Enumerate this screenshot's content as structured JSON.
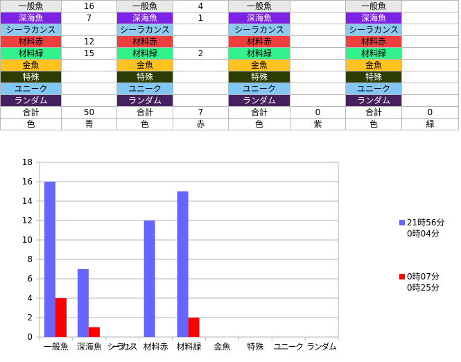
{
  "table": {
    "rows": [
      [
        "一般魚",
        "16",
        "一般魚",
        "4",
        "一般魚",
        "",
        "一般魚",
        ""
      ],
      [
        "深海魚",
        "7",
        "深海魚",
        "1",
        "深海魚",
        "",
        "深海魚",
        ""
      ],
      [
        "シーラカンス",
        "",
        "シーラカンス",
        "",
        "シーラカンス",
        "",
        "シーラカンス",
        ""
      ],
      [
        "材料赤",
        "12",
        "材料赤",
        "",
        "材料赤",
        "",
        "材料赤",
        ""
      ],
      [
        "材料緑",
        "15",
        "材料緑",
        "2",
        "材料緑",
        "",
        "材料緑",
        ""
      ],
      [
        "金魚",
        "",
        "金魚",
        "",
        "金魚",
        "",
        "金魚",
        ""
      ],
      [
        "特殊",
        "",
        "特殊",
        "",
        "特殊",
        "",
        "特殊",
        ""
      ],
      [
        "ユニーク",
        "",
        "ユニーク",
        "",
        "ユニーク",
        "",
        "ユニーク",
        ""
      ],
      [
        "ランダム",
        "",
        "ランダム",
        "",
        "ランダム",
        "",
        "ランダム",
        ""
      ],
      [
        "合計",
        "50",
        "合計",
        "7",
        "合計",
        "0",
        "合計",
        "0"
      ],
      [
        "色",
        "青",
        "色",
        "赤",
        "色",
        "紫",
        "色",
        "緑"
      ]
    ],
    "row_colors": [
      {
        "bg": "#e8e8e8",
        "fg": "#000000"
      },
      {
        "bg": "#7b22e6",
        "fg": "#ffffff"
      },
      {
        "bg": "#8ec9f0",
        "fg": "#000000"
      },
      {
        "bg": "#ef3e3e",
        "fg": "#000000"
      },
      {
        "bg": "#33f28c",
        "fg": "#000000"
      },
      {
        "bg": "#ffc21e",
        "fg": "#000000"
      },
      {
        "bg": "#2b3d05",
        "fg": "#ffffff"
      },
      {
        "bg": "#82c6f3",
        "fg": "#000000"
      },
      {
        "bg": "#46205f",
        "fg": "#ffffff"
      },
      {
        "bg": "#ffffff",
        "fg": "#000000"
      },
      {
        "bg": "#ffffff",
        "fg": "#000000"
      }
    ]
  },
  "chart_data": {
    "type": "bar",
    "categories": [
      "一般魚",
      "深海魚",
      "シーラカンス",
      "材料赤",
      "材料緑",
      "金魚",
      "特殊",
      "ユニーク",
      "ランダム"
    ],
    "series": [
      {
        "name": "21時56分\n0時04分",
        "color": "#6666ff",
        "values": [
          16,
          7,
          0,
          12,
          15,
          0,
          0,
          0,
          0
        ]
      },
      {
        "name": "0時07分\n0時25分",
        "color": "#ff0000",
        "values": [
          4,
          1,
          0,
          0,
          2,
          0,
          0,
          0,
          0
        ]
      }
    ],
    "title": "",
    "xlabel": "",
    "ylabel": "",
    "ylim": [
      0,
      18
    ],
    "yticks": [
      0,
      2,
      4,
      6,
      8,
      10,
      12,
      14,
      16,
      18
    ],
    "grid": true,
    "legend": "right"
  }
}
